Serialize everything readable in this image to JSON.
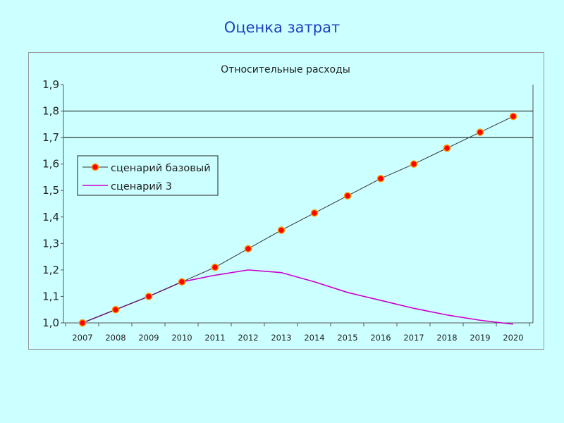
{
  "slide": {
    "title": "Оценка затрат"
  },
  "colors": {
    "background": "#ccffff",
    "title": "#1f3fbf",
    "series_base_line": "#333333",
    "series_base_marker": "#ff0000",
    "series_base_marker_edge": "#ff9900",
    "series_3": "#cc00cc",
    "gridline": "#000000"
  },
  "chart_data": {
    "type": "line",
    "title": "Относительные расходы",
    "xlabel": "",
    "ylabel": "",
    "categories": [
      "2007",
      "2008",
      "2009",
      "2010",
      "2011",
      "2012",
      "2013",
      "2014",
      "2015",
      "2016",
      "2017",
      "2018",
      "2019",
      "2020"
    ],
    "y_tick_labels": [
      "1,0",
      "1,1",
      "1,2",
      "1,3",
      "1,4",
      "1,5",
      "1,6",
      "1,7",
      "1,8",
      "1,9"
    ],
    "ylim": [
      1.0,
      1.9
    ],
    "gridlines_at": [
      1.7,
      1.8
    ],
    "legend_position": "left",
    "series": [
      {
        "name": "сценарий базовый",
        "values": [
          1.0,
          1.05,
          1.1,
          1.155,
          1.21,
          1.28,
          1.35,
          1.415,
          1.48,
          1.545,
          1.6,
          1.66,
          1.72,
          1.78
        ],
        "markers": true
      },
      {
        "name": "сценарий 3",
        "values": [
          1.0,
          1.05,
          1.1,
          1.155,
          1.18,
          1.2,
          1.19,
          1.155,
          1.115,
          1.085,
          1.055,
          1.03,
          1.01,
          0.995
        ],
        "markers": false
      }
    ]
  }
}
